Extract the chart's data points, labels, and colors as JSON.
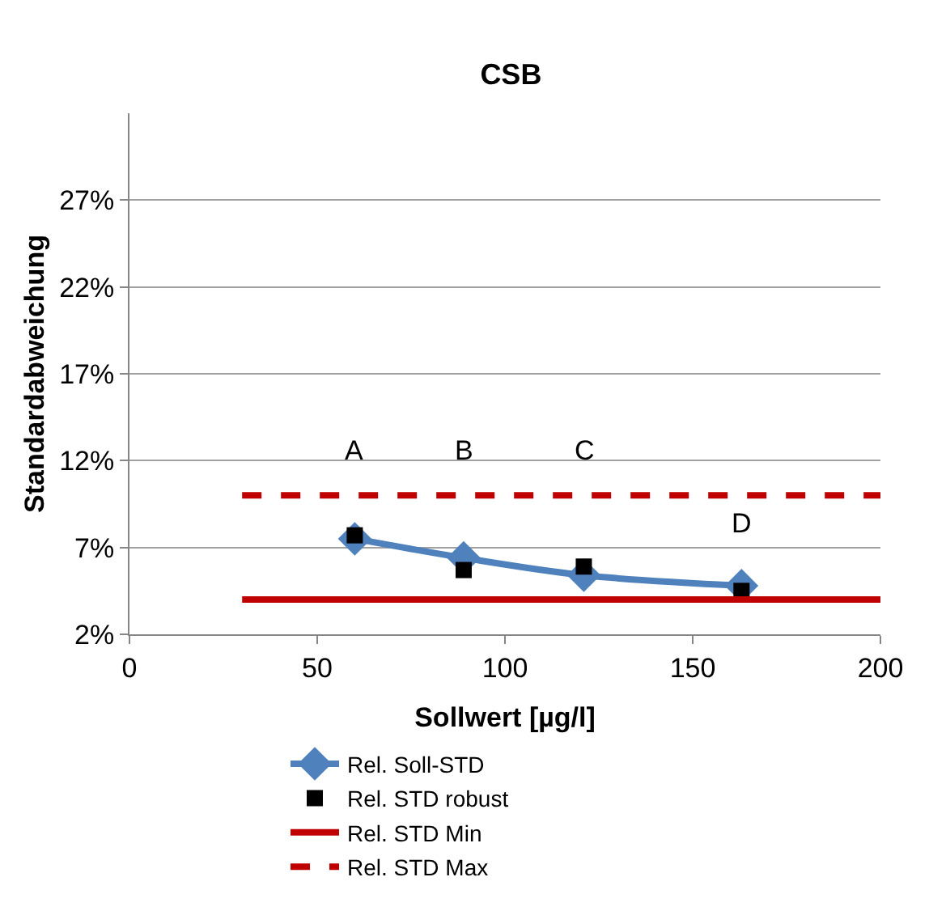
{
  "chart_data": {
    "type": "line",
    "title": "CSB",
    "xlabel": "Sollwert [µg/l]",
    "ylabel": "Standardabweichung",
    "xlim": [
      0,
      200
    ],
    "xticks": [
      0,
      50,
      100,
      150,
      200
    ],
    "ylim": [
      2,
      32
    ],
    "yticks": [
      {
        "value": 2,
        "label": "2%"
      },
      {
        "value": 7,
        "label": "7%"
      },
      {
        "value": 12,
        "label": "12%"
      },
      {
        "value": 17,
        "label": "17%"
      },
      {
        "value": 22,
        "label": "22%"
      },
      {
        "value": 27,
        "label": "27%"
      }
    ],
    "grid": "y",
    "legend": "bottom",
    "series": [
      {
        "name": "Rel. Soll-STD",
        "color": "#4f81bd",
        "marker": "diamond",
        "x": [
          60,
          89,
          121,
          163
        ],
        "values": [
          7.5,
          6.4,
          5.4,
          4.8
        ]
      },
      {
        "name": "Rel. STD robust",
        "type": "scatter",
        "color": "#000000",
        "marker": "square",
        "x": [
          60,
          89,
          121,
          163
        ],
        "values": [
          7.7,
          5.7,
          5.9,
          4.5
        ]
      },
      {
        "name": "Rel. STD Min",
        "color": "#c00000",
        "marker": "none",
        "line_style": "solid",
        "x": [
          30,
          200
        ],
        "values": [
          4.0,
          4.0
        ]
      },
      {
        "name": "Rel. STD Max",
        "color": "#c00000",
        "marker": "none",
        "line_style": "dashed",
        "x": [
          30,
          200
        ],
        "values": [
          10.0,
          10.0
        ]
      }
    ],
    "annotations": [
      "A",
      "B",
      "C",
      "D"
    ]
  }
}
